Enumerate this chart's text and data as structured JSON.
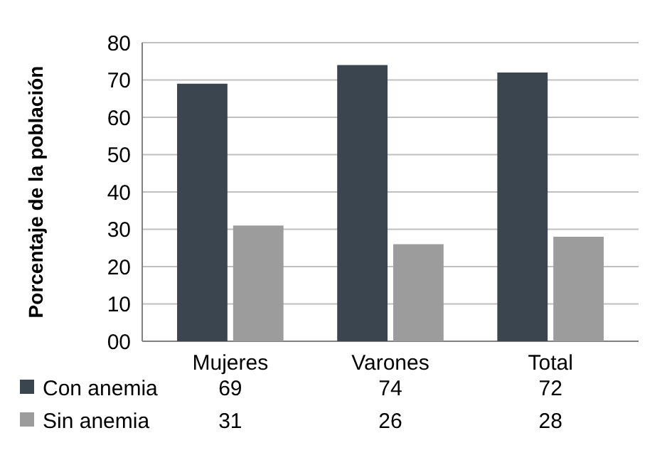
{
  "chart_data": {
    "type": "bar",
    "ylabel": "Porcentaje de la población",
    "categories": [
      "Mujeres",
      "Varones",
      "Total"
    ],
    "series": [
      {
        "name": "Con anemia",
        "color": "#3a4550",
        "values": [
          69,
          74,
          72
        ]
      },
      {
        "name": "Sin anemia",
        "color": "#9c9c9c",
        "values": [
          31,
          26,
          28
        ]
      }
    ],
    "ylim": [
      0,
      80
    ],
    "yticks": [
      {
        "value": 0,
        "label": "00"
      },
      10,
      20,
      30,
      40,
      50,
      60,
      70,
      80
    ],
    "grid": "y",
    "legend": "bottom",
    "data_labels": true
  }
}
